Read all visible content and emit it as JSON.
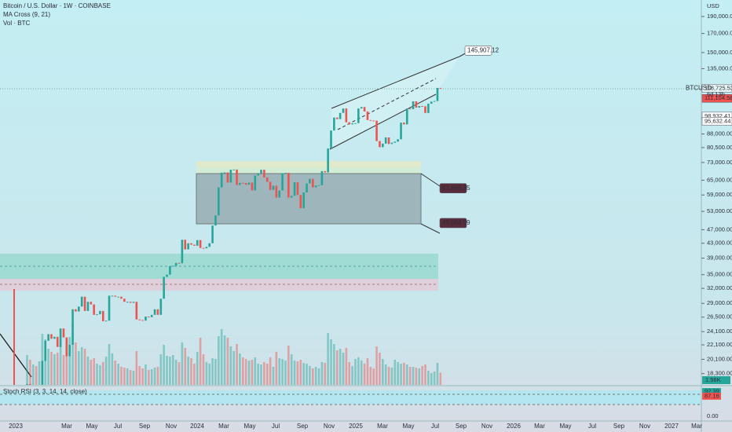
{
  "chart_data": {
    "type": "candlestick",
    "title": "Bitcoin / U.S. Dollar · 1W · COINBASE",
    "indicators": [
      "MA Cross (9, 21)",
      "Vol · BTC"
    ],
    "currency": "USD",
    "log_scale": true,
    "ylim": [
      17000,
      211700
    ],
    "yticks": [
      {
        "value": 190000,
        "label": "190,000.00"
      },
      {
        "value": 170000,
        "label": "170,000.00"
      },
      {
        "value": 150000,
        "label": "150,000.00"
      },
      {
        "value": 135000,
        "label": "135,000.00"
      },
      {
        "value": 88000,
        "label": "88,000.00"
      },
      {
        "value": 80500,
        "label": "80,500.00"
      },
      {
        "value": 73000,
        "label": "73,000.00"
      },
      {
        "value": 65000,
        "label": "65,000.00"
      },
      {
        "value": 59000,
        "label": "59,000.00"
      },
      {
        "value": 53000,
        "label": "53,000.00"
      },
      {
        "value": 47000,
        "label": "47,000.00"
      },
      {
        "value": 43000,
        "label": "43,000.00"
      },
      {
        "value": 39000,
        "label": "39,000.00"
      },
      {
        "value": 35000,
        "label": "35,000.00"
      },
      {
        "value": 32000,
        "label": "32,000.00"
      },
      {
        "value": 29000,
        "label": "29,000.00"
      },
      {
        "value": 26500,
        "label": "26,500.00"
      },
      {
        "value": 24100,
        "label": "24,100.00"
      },
      {
        "value": 22100,
        "label": "22,100.00"
      },
      {
        "value": 20100,
        "label": "20,100.00"
      },
      {
        "value": 18300,
        "label": "18,300.00"
      }
    ],
    "xticks": [
      "2023",
      "Mar",
      "May",
      "Jul",
      "Sep",
      "Nov",
      "2024",
      "Mar",
      "May",
      "Jul",
      "Sep",
      "Nov",
      "2025",
      "Mar",
      "May",
      "Jul",
      "Sep",
      "Nov",
      "2026",
      "Mar",
      "May",
      "Jul",
      "Sep",
      "Nov",
      "2027",
      "Mar"
    ],
    "up_color": "#26a69a",
    "down_color": "#ef5350",
    "open": [
      16900,
      17100,
      16800,
      16800,
      16600,
      16900,
      19900,
      22700,
      23700,
      23000,
      23300,
      21800,
      24600,
      23200,
      20500,
      22100,
      27900,
      27500,
      28400,
      30300,
      27600,
      29300,
      28800,
      26900,
      27000,
      27600,
      25800,
      25900,
      30500,
      30500,
      30300,
      30300,
      29900,
      29300,
      29300,
      29100,
      29300,
      26100,
      26000,
      25900,
      26600,
      26500,
      26900,
      27900,
      26900,
      29900,
      34500,
      35000,
      37000,
      37100,
      37800,
      37700,
      44000,
      41300,
      43000,
      42600,
      42300,
      43900,
      41700,
      41600,
      42000,
      43000,
      48300,
      51600,
      62000,
      68300,
      68400,
      64000,
      69600,
      69700,
      63000,
      63900,
      63800,
      63100,
      64000,
      60800,
      67000,
      67700,
      69600,
      66200,
      64300,
      61000,
      62700,
      58000,
      60800,
      68000,
      68200,
      58000,
      58700,
      64100,
      59000,
      54100,
      60000,
      63600,
      65600,
      62000,
      62800,
      62900,
      69000,
      68400,
      80000,
      90000,
      98000,
      97000,
      101000,
      104000,
      95000,
      93700,
      94400,
      94500,
      104000,
      105000,
      102000,
      96400,
      96100,
      96000,
      84000,
      80700,
      82600,
      86000,
      82400,
      83100,
      83700,
      85000,
      94800,
      93700,
      104000,
      103500,
      109000,
      104600,
      105700,
      105500,
      101000,
      107300,
      108800,
      109200,
      119000
    ],
    "close": [
      17100,
      16800,
      16800,
      16600,
      16900,
      19900,
      22700,
      23700,
      23000,
      23300,
      21800,
      24600,
      23200,
      20500,
      22100,
      27900,
      27500,
      28400,
      30300,
      27600,
      29300,
      28800,
      26900,
      27000,
      27600,
      25800,
      25900,
      30500,
      30500,
      30300,
      30300,
      29900,
      29300,
      29300,
      29100,
      29300,
      26100,
      26000,
      25900,
      26600,
      26500,
      26900,
      27900,
      26900,
      29900,
      34500,
      35000,
      37000,
      37100,
      37800,
      37700,
      44000,
      41300,
      43000,
      42600,
      42300,
      43900,
      41700,
      41600,
      42000,
      43000,
      48300,
      51600,
      62000,
      68300,
      68400,
      64000,
      69600,
      69700,
      63000,
      63900,
      63800,
      63100,
      64000,
      60800,
      67000,
      67700,
      69600,
      66200,
      64300,
      61000,
      62700,
      58000,
      60800,
      68000,
      68200,
      58000,
      58700,
      64100,
      59000,
      54100,
      60000,
      63600,
      65600,
      62000,
      62800,
      62900,
      69000,
      68400,
      80000,
      90000,
      98000,
      97000,
      101000,
      104000,
      95000,
      93700,
      94400,
      94500,
      104000,
      105000,
      102000,
      96400,
      96100,
      96000,
      84000,
      80700,
      82600,
      86000,
      82400,
      83100,
      83700,
      85000,
      94800,
      93700,
      104000,
      103500,
      109000,
      104600,
      105700,
      105500,
      101000,
      107300,
      108800,
      109200,
      119000,
      118725
    ],
    "volume": [
      3800,
      3200,
      2600,
      2400,
      3000,
      6500,
      5800,
      4600,
      4200,
      3900,
      4100,
      5200,
      3800,
      5600,
      6100,
      7800,
      5400,
      4300,
      4800,
      4600,
      3600,
      3200,
      3400,
      2700,
      2500,
      2900,
      3600,
      5200,
      4000,
      3100,
      2700,
      2300,
      2200,
      2100,
      1900,
      1800,
      4300,
      2400,
      2100,
      2600,
      1900,
      2000,
      2200,
      2300,
      3900,
      5100,
      3700,
      3600,
      3800,
      3200,
      2900,
      5400,
      4700,
      3600,
      3400,
      2700,
      4200,
      6000,
      3900,
      2900,
      2700,
      3400,
      3300,
      6200,
      7100,
      6300,
      6000,
      4900,
      4300,
      5200,
      4000,
      3500,
      3300,
      3100,
      3200,
      3500,
      2700,
      2600,
      2900,
      2700,
      3500,
      2300,
      4200,
      3400,
      3300,
      3100,
      5000,
      3900,
      3100,
      3000,
      3200,
      2800,
      2700,
      2400,
      2100,
      2300,
      2100,
      2900,
      2800,
      6600,
      5800,
      5200,
      4400,
      4600,
      4100,
      4700,
      2900,
      2400,
      3300,
      3500,
      3100,
      2700,
      3400,
      2300,
      2100,
      4900,
      4100,
      3300,
      2600,
      2300,
      2200,
      3200,
      2900,
      2700,
      2800,
      2600,
      2300,
      2300,
      2200,
      2100,
      2400,
      2600,
      1800,
      1500,
      1700,
      2800,
      1560
    ],
    "vlim": [
      0,
      8000
    ],
    "volume_label": {
      "value": 1560,
      "label": "1.56K"
    },
    "symbol": "BTCUSD",
    "countdown": "6d 13h",
    "price_labels": [
      {
        "value": 118725.53,
        "label": "118,725.53"
      },
      {
        "value": 111104.58,
        "label": "111,104.58"
      },
      {
        "value": 98932.41,
        "label": "98,932.41"
      },
      {
        "value": 95632.44,
        "label": "95,632.44"
      }
    ],
    "annotations": [
      {
        "value": 145907.12,
        "label": "145,907.12"
      },
      {
        "value": 61656.35,
        "label": "61,656.35"
      },
      {
        "value": 49084.09,
        "label": "49,084.09"
      }
    ],
    "stoch_title": "Stoch RSI (3, 3, 14, 14, close)",
    "stoch_labels": [
      {
        "value": 92.39,
        "label": "92.39"
      },
      {
        "value": 87.16,
        "label": "87.16"
      }
    ],
    "stoch_ylim": [
      0,
      100
    ],
    "stoch_yticks": [
      {
        "value": 0,
        "label": "0.00"
      }
    ]
  }
}
